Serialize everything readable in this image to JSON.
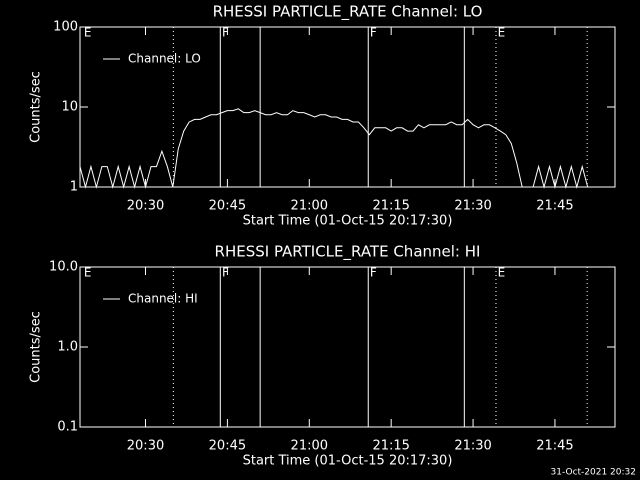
{
  "chart_data": [
    {
      "type": "line",
      "title": "RHESSI PARTICLE_RATE Channel: LO",
      "xlabel": "Start Time (01-Oct-15 20:17:30)",
      "ylabel": "Counts/sec",
      "log_y": true,
      "ylim": [
        1,
        100
      ],
      "yticks": [
        1,
        10,
        100
      ],
      "xlim": [
        18,
        116
      ],
      "xticks": [
        {
          "value": 30,
          "label": "20:30"
        },
        {
          "value": 45,
          "label": "20:45"
        },
        {
          "value": 60,
          "label": "21:00"
        },
        {
          "value": 75,
          "label": "21:15"
        },
        {
          "value": 90,
          "label": "21:30"
        },
        {
          "value": 105,
          "label": "21:45"
        }
      ],
      "legend": "upper left",
      "vlines": [
        {
          "x": 35.1,
          "style": "dotted"
        },
        {
          "x": 43.7,
          "style": "solid"
        },
        {
          "x": 51.0,
          "style": "solid"
        },
        {
          "x": 70.8,
          "style": "solid"
        },
        {
          "x": 88.4,
          "style": "solid"
        },
        {
          "x": 94.2,
          "style": "dotted"
        },
        {
          "x": 110.9,
          "style": "dotted"
        }
      ],
      "annotations": [
        {
          "text": "E",
          "x": 18.7
        },
        {
          "text": "F",
          "x": 44.0
        },
        {
          "text": "F",
          "x": 71.1
        },
        {
          "text": "E",
          "x": 94.5
        }
      ],
      "series": [
        {
          "name": "Channel: LO",
          "color": "#ffffff",
          "x": [
            18,
            19,
            20,
            21,
            22,
            23,
            24,
            25,
            26,
            27,
            28,
            29,
            30,
            31,
            32,
            33,
            34,
            35,
            36,
            37,
            38,
            39,
            40,
            41,
            42,
            43,
            44,
            45,
            46,
            47,
            48,
            49,
            50,
            51,
            52,
            53,
            54,
            55,
            56,
            57,
            58,
            59,
            60,
            61,
            62,
            63,
            64,
            65,
            66,
            67,
            68,
            69,
            70,
            71,
            72,
            73,
            74,
            75,
            76,
            77,
            78,
            79,
            80,
            81,
            82,
            83,
            84,
            85,
            86,
            87,
            88,
            89,
            90,
            91,
            92,
            93,
            94,
            95,
            96,
            97,
            98,
            99,
            100,
            101,
            102,
            103,
            104,
            105,
            106,
            107,
            108,
            109,
            110,
            111
          ],
          "values": [
            1.8,
            1,
            1.8,
            1,
            1.8,
            1.8,
            1,
            1.8,
            1,
            1.8,
            1,
            1.8,
            1,
            1.8,
            1.8,
            2.8,
            1.8,
            1,
            3,
            5,
            6.5,
            7,
            7,
            7.5,
            8,
            8,
            8.5,
            9,
            9,
            9.5,
            8.5,
            8.5,
            9,
            8.5,
            8,
            8,
            8.5,
            8,
            8,
            9,
            8.5,
            8.5,
            8,
            7.5,
            8,
            8,
            7.5,
            7.5,
            7,
            7,
            6.5,
            6.5,
            5.5,
            4.5,
            5.5,
            5.5,
            5.5,
            5,
            5.5,
            5.5,
            5,
            5,
            6,
            5.5,
            6,
            6,
            6,
            6,
            6.5,
            6,
            6,
            7,
            6,
            5.5,
            6,
            6,
            5.5,
            5,
            4.5,
            3.5,
            2,
            1,
            1,
            1,
            1.8,
            1,
            1.8,
            1,
            1.8,
            1,
            1.8,
            1,
            1.8,
            1
          ]
        }
      ]
    },
    {
      "type": "line",
      "title": "RHESSI PARTICLE_RATE Channel: HI",
      "xlabel": "Start Time (01-Oct-15 20:17:30)",
      "ylabel": "Counts/sec",
      "log_y": true,
      "ylim": [
        0.1,
        10
      ],
      "yticks": [
        {
          "value": 0.1,
          "label": "0.1"
        },
        {
          "value": 1,
          "label": "1.0"
        },
        {
          "value": 10,
          "label": "10.0"
        }
      ],
      "xlim": [
        18,
        116
      ],
      "xticks": [
        {
          "value": 30,
          "label": "20:30"
        },
        {
          "value": 45,
          "label": "20:45"
        },
        {
          "value": 60,
          "label": "21:00"
        },
        {
          "value": 75,
          "label": "21:15"
        },
        {
          "value": 90,
          "label": "21:30"
        },
        {
          "value": 105,
          "label": "21:45"
        }
      ],
      "legend": "upper left",
      "vlines": [
        {
          "x": 35.1,
          "style": "dotted"
        },
        {
          "x": 43.7,
          "style": "solid"
        },
        {
          "x": 51.0,
          "style": "solid"
        },
        {
          "x": 70.8,
          "style": "solid"
        },
        {
          "x": 88.4,
          "style": "solid"
        },
        {
          "x": 94.2,
          "style": "dotted"
        },
        {
          "x": 110.9,
          "style": "dotted"
        }
      ],
      "annotations": [
        {
          "text": "E",
          "x": 18.7
        },
        {
          "text": "F",
          "x": 44.0
        },
        {
          "text": "F",
          "x": 71.1
        },
        {
          "text": "E",
          "x": 94.5
        }
      ],
      "series": [
        {
          "name": "Channel: HI",
          "color": "#ffffff",
          "x": [],
          "values": []
        }
      ]
    }
  ],
  "footer": "31-Oct-2021 20:32"
}
